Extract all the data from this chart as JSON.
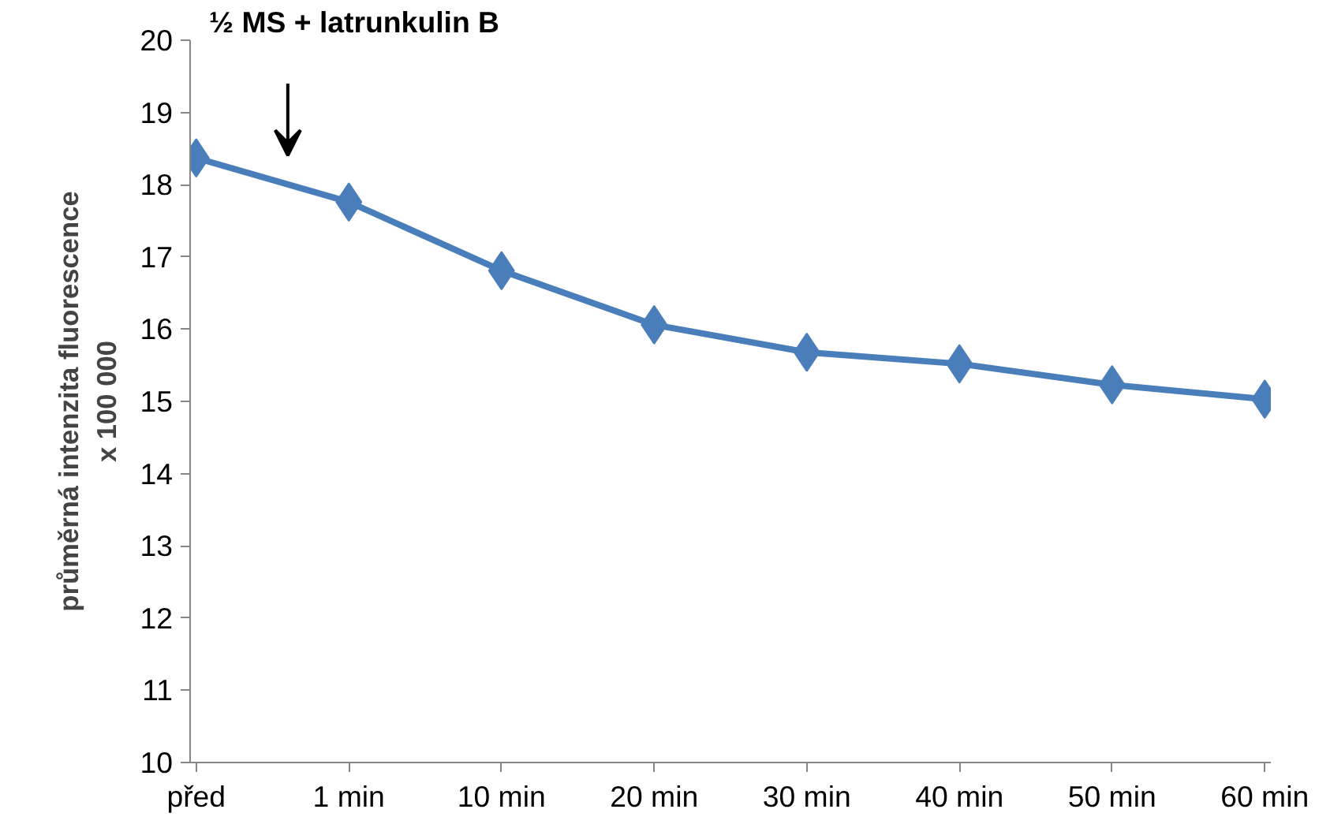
{
  "chart_data": {
    "type": "line",
    "categories": [
      "před",
      "1 min",
      "10 min",
      "20 min",
      "30 min",
      "40 min",
      "50 min",
      "60 min"
    ],
    "series": [
      {
        "color": "#4a7ebb",
        "values": [
          18.37,
          17.76,
          16.81,
          16.06,
          15.68,
          15.52,
          15.23,
          15.03
        ]
      }
    ],
    "ylabel": "průměrná intenzita fluorescence\nx 100 000",
    "ylim": [
      10,
      20
    ],
    "yticks": [
      10,
      11,
      12,
      13,
      14,
      15,
      16,
      17,
      18,
      19,
      20
    ],
    "annotations": [
      "½ MS + latrunkulin B"
    ],
    "grid": false,
    "marker": "diamond",
    "line_style": "solid"
  }
}
